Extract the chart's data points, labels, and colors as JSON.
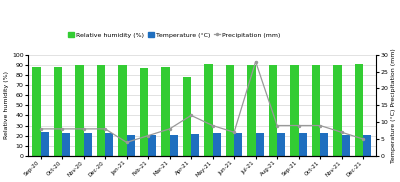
{
  "months": [
    "Sep-20",
    "Oct-20",
    "Nov-20",
    "Dec-20",
    "Jan-21",
    "Feb-21",
    "Mar-21",
    "Apr-21",
    "May-21",
    "Jun-21",
    "Jul-21",
    "Aug-21",
    "Sep-21",
    "Oct-21",
    "Nov-21",
    "Dec-21"
  ],
  "humidity": [
    88,
    88,
    90,
    90,
    90,
    87,
    88,
    78,
    91,
    90,
    90,
    90,
    90,
    90,
    90,
    91
  ],
  "temperature": [
    24,
    23,
    23,
    23,
    21,
    21,
    21,
    22,
    23,
    23,
    23,
    23,
    23,
    23,
    21,
    21
  ],
  "precipitation": [
    8,
    8,
    8,
    8,
    4,
    6,
    8,
    12,
    9,
    7,
    28,
    9,
    9,
    9,
    7,
    5
  ],
  "humidity_color": "#33CC33",
  "temperature_color": "#1F6FBF",
  "precipitation_color": "#999999",
  "ylim_left": [
    0,
    100
  ],
  "ylim_right": [
    0,
    30
  ],
  "ylabel_left": "Relative humidity (%)",
  "ylabel_right": "Temperature (°C) Precipitation (mm)",
  "yticks_left": [
    0,
    10,
    20,
    30,
    40,
    50,
    60,
    70,
    80,
    90,
    100
  ],
  "yticks_right": [
    0,
    5,
    10,
    15,
    20,
    25,
    30
  ],
  "legend_labels": [
    "Relative humidity (%)",
    "Temperature (°C)",
    "Precipitation (mm)"
  ],
  "bar_width": 0.38,
  "bg_color": "#ffffff"
}
